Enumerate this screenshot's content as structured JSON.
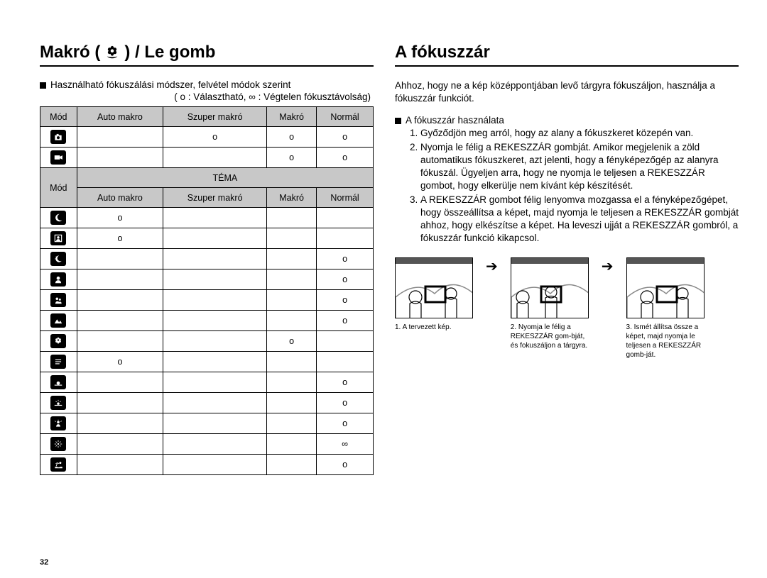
{
  "pageNumber": "32",
  "left": {
    "heading_pre": "Makró (",
    "heading_post": ") / Le gomb",
    "bullet": "Használható fókuszálási módszer, felvétel módok szerint",
    "legend": "( o : Választható, ∞ : Végtelen fókusztávolság)",
    "table": {
      "head1": [
        "Mód",
        "Auto makro",
        "Szuper makró",
        "Makró",
        "Normál"
      ],
      "rows1": [
        {
          "icon": "camera",
          "cells": [
            "",
            "o",
            "o",
            "o"
          ]
        },
        {
          "icon": "video",
          "cells": [
            "",
            "",
            "o",
            "o"
          ]
        }
      ],
      "tema_label": "TÉMA",
      "mod_label": "Mód",
      "head2": [
        "Auto makro",
        "Szuper makró",
        "Makró",
        "Normál"
      ],
      "rows2": [
        {
          "icon": "night",
          "cells": [
            "o",
            "",
            "",
            ""
          ]
        },
        {
          "icon": "portrait-frame",
          "cells": [
            "o",
            "",
            "",
            ""
          ]
        },
        {
          "icon": "night2",
          "cells": [
            "",
            "",
            "",
            "o"
          ]
        },
        {
          "icon": "portrait",
          "cells": [
            "",
            "",
            "",
            "o"
          ]
        },
        {
          "icon": "children",
          "cells": [
            "",
            "",
            "",
            "o"
          ]
        },
        {
          "icon": "landscape",
          "cells": [
            "",
            "",
            "",
            "o"
          ]
        },
        {
          "icon": "closeup",
          "cells": [
            "",
            "",
            "o",
            ""
          ]
        },
        {
          "icon": "text",
          "cells": [
            "o",
            "",
            "",
            ""
          ]
        },
        {
          "icon": "sunset",
          "cells": [
            "",
            "",
            "",
            "o"
          ]
        },
        {
          "icon": "dawn",
          "cells": [
            "",
            "",
            "",
            "o"
          ]
        },
        {
          "icon": "backlight",
          "cells": [
            "",
            "",
            "",
            "o"
          ]
        },
        {
          "icon": "firework",
          "cells": [
            "",
            "",
            "",
            "∞"
          ]
        },
        {
          "icon": "beach",
          "cells": [
            "",
            "",
            "",
            "o"
          ]
        }
      ]
    }
  },
  "right": {
    "heading": "A fókuszzár",
    "intro": "Ahhoz, hogy ne a kép középpontjában levő tárgyra fókuszáljon, használja a fókuszzár funkciót.",
    "sub_bullet": "A fókuszzár használata",
    "steps": [
      "Győződjön meg arról, hogy az alany a fókuszkeret közepén van.",
      "Nyomja le félig a REKESZZÁR gombját. Amikor megjelenik a zöld automatikus fókuszkeret, azt jelenti, hogy a fényképezőgép az alanyra fókuszál. Ügyeljen arra, hogy ne nyomja le teljesen a REKESZZÁR gombot, hogy elkerülje nem kívánt kép készítését.",
      "A REKESZZÁR gombot félig lenyomva mozgassa el a fényképezőgépet, hogy összeállítsa a képet, majd nyomja le teljesen a REKESZZÁR gombját ahhoz, hogy elkészítse a képet. Ha leveszi ujját a REKESZZÁR gombról, a fókuszzár funkció kikapcsol."
    ],
    "captions": [
      "1. A tervezett kép.",
      "2. Nyomja le félig a REKESZZÁR gom-bját, és fokuszáljon a tárgyra.",
      "3. Ismét állítsa össze a képet, majd nyomja le teljesen a REKESZZÁR gomb-ját."
    ]
  },
  "colors": {
    "header_bg": "#c8c8c8",
    "icon_bg": "#000000"
  }
}
